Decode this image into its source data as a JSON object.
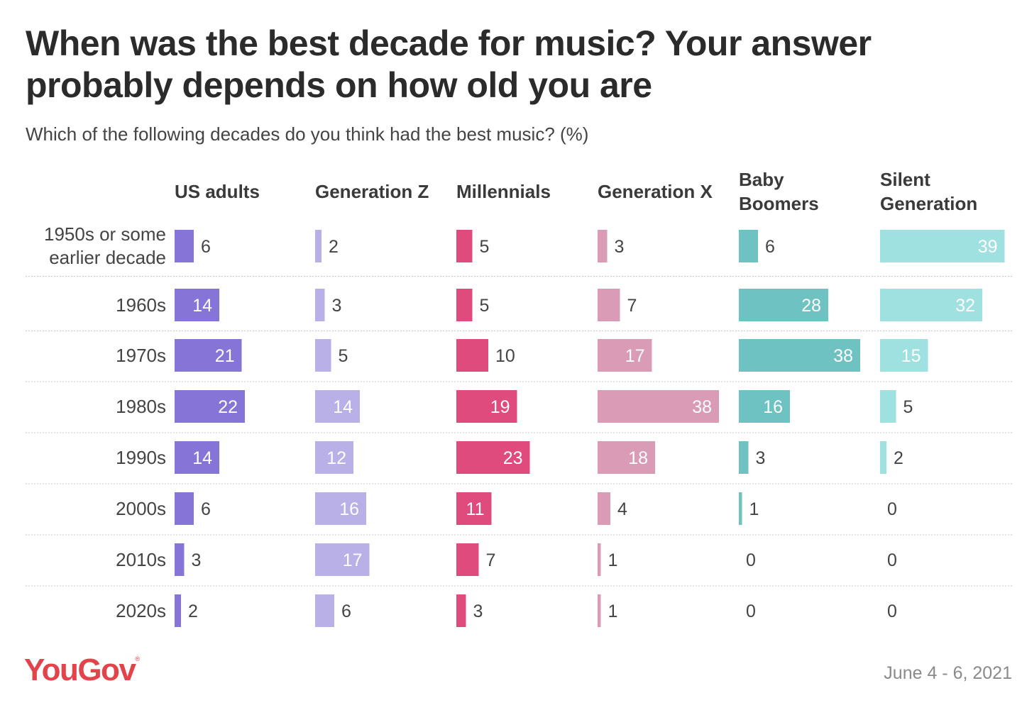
{
  "title": "When was the best decade for music? Your answer probably depends on how old you are",
  "subtitle": "Which of the following decades do you think had the best music? (%)",
  "logo": "YouGov",
  "date": "June 4 - 6, 2021",
  "chart_data": {
    "type": "bar",
    "orientation": "horizontal",
    "layout": "small-multiples",
    "title": "When was the best decade for music? Your answer probably depends on how old you are",
    "subtitle": "Which of the following decades do you think had the best music? (%)",
    "categories": [
      "1950s or some earlier decade",
      "1960s",
      "1970s",
      "1980s",
      "1990s",
      "2000s",
      "2010s",
      "2020s"
    ],
    "series": [
      {
        "name": "US adults",
        "color": "#8674d6",
        "values": [
          6,
          14,
          21,
          22,
          14,
          6,
          3,
          2
        ]
      },
      {
        "name": "Generation Z",
        "color": "#b8b0e6",
        "values": [
          2,
          3,
          5,
          14,
          12,
          16,
          17,
          6
        ]
      },
      {
        "name": "Millennials",
        "color": "#de4b7c",
        "values": [
          5,
          5,
          10,
          19,
          23,
          11,
          7,
          3
        ]
      },
      {
        "name": "Generation X",
        "color": "#d99bb6",
        "values": [
          3,
          7,
          17,
          38,
          18,
          4,
          1,
          1
        ]
      },
      {
        "name": "Baby Boomers",
        "color": "#6ec2c2",
        "values": [
          6,
          28,
          38,
          16,
          3,
          1,
          0,
          0
        ]
      },
      {
        "name": "Silent Generation",
        "color": "#9fe0e0",
        "values": [
          39,
          32,
          15,
          5,
          2,
          0,
          0,
          0
        ]
      }
    ],
    "xlim": [
      0,
      40
    ],
    "grid": false,
    "legend": "none"
  }
}
